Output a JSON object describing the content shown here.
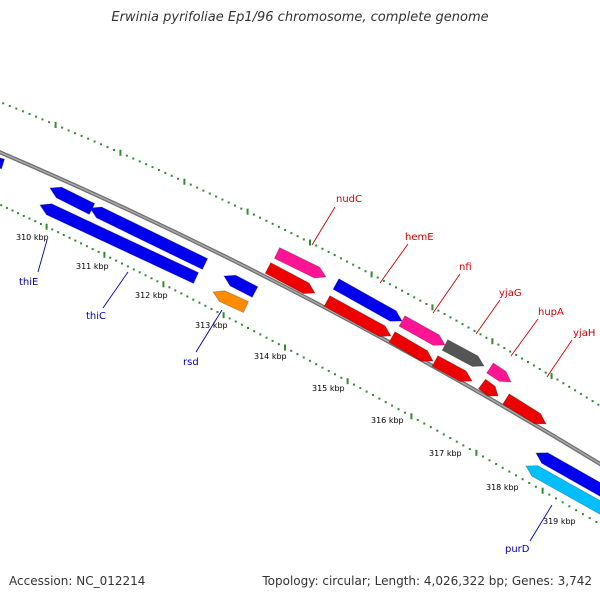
{
  "title": "Erwinia pyrifoliae Ep1/96 chromosome, complete genome",
  "accession_text": "Accession: NC_012214",
  "summary_text": "Topology: circular; Length: 4,026,322 bp; Genes: 3,742",
  "colors": {
    "backbone": "#888888",
    "tick": "#2e8b2e",
    "label_forward": "#cc0000",
    "label_reverse": "#0000aa"
  },
  "scale": {
    "unit": "kbp",
    "ticks": [
      {
        "label": "310 kbp"
      },
      {
        "label": "311 kbp"
      },
      {
        "label": "312 kbp"
      },
      {
        "label": "313 kbp"
      },
      {
        "label": "314 kbp"
      },
      {
        "label": "315 kbp"
      },
      {
        "label": "316 kbp"
      },
      {
        "label": "317 kbp"
      },
      {
        "label": "318 kbp"
      },
      {
        "label": "319 kbp"
      }
    ]
  },
  "gene_labels": [
    {
      "name": "thiE",
      "strand": "reverse"
    },
    {
      "name": "thiC",
      "strand": "reverse"
    },
    {
      "name": "rsd",
      "strand": "reverse"
    },
    {
      "name": "nudC",
      "strand": "forward"
    },
    {
      "name": "hemE",
      "strand": "forward"
    },
    {
      "name": "nfi",
      "strand": "forward"
    },
    {
      "name": "yjaG",
      "strand": "forward"
    },
    {
      "name": "hupA",
      "strand": "forward"
    },
    {
      "name": "yjaH",
      "strand": "forward"
    },
    {
      "name": "purD",
      "strand": "reverse"
    }
  ],
  "features": [
    {
      "id": "f1",
      "color": "#0000ee",
      "direction": "left"
    },
    {
      "id": "f2",
      "color": "#0000ee",
      "direction": "left"
    },
    {
      "id": "f3",
      "color": "#0000ee",
      "direction": "left"
    },
    {
      "id": "f4",
      "color": "#0000ee",
      "direction": "left"
    },
    {
      "id": "f5",
      "color": "#0000ee",
      "direction": "left"
    },
    {
      "id": "f6",
      "color": "#ff8c00",
      "direction": "left"
    },
    {
      "id": "f7",
      "color": "#ff1493",
      "direction": "right"
    },
    {
      "id": "f8",
      "color": "#ee0000",
      "direction": "right"
    },
    {
      "id": "f9",
      "color": "#0000ee",
      "direction": "right"
    },
    {
      "id": "f10",
      "color": "#ee0000",
      "direction": "right"
    },
    {
      "id": "f11",
      "color": "#ff1493",
      "direction": "right"
    },
    {
      "id": "f12",
      "color": "#ee0000",
      "direction": "right"
    },
    {
      "id": "f13",
      "color": "#555555",
      "direction": "right"
    },
    {
      "id": "f14",
      "color": "#ee0000",
      "direction": "right"
    },
    {
      "id": "f15",
      "color": "#ff1493",
      "direction": "right"
    },
    {
      "id": "f16",
      "color": "#ee0000",
      "direction": "right"
    },
    {
      "id": "f17",
      "color": "#ee0000",
      "direction": "right"
    },
    {
      "id": "f18",
      "color": "#0000ee",
      "direction": "left"
    },
    {
      "id": "f19",
      "color": "#00bfff",
      "direction": "left"
    }
  ]
}
